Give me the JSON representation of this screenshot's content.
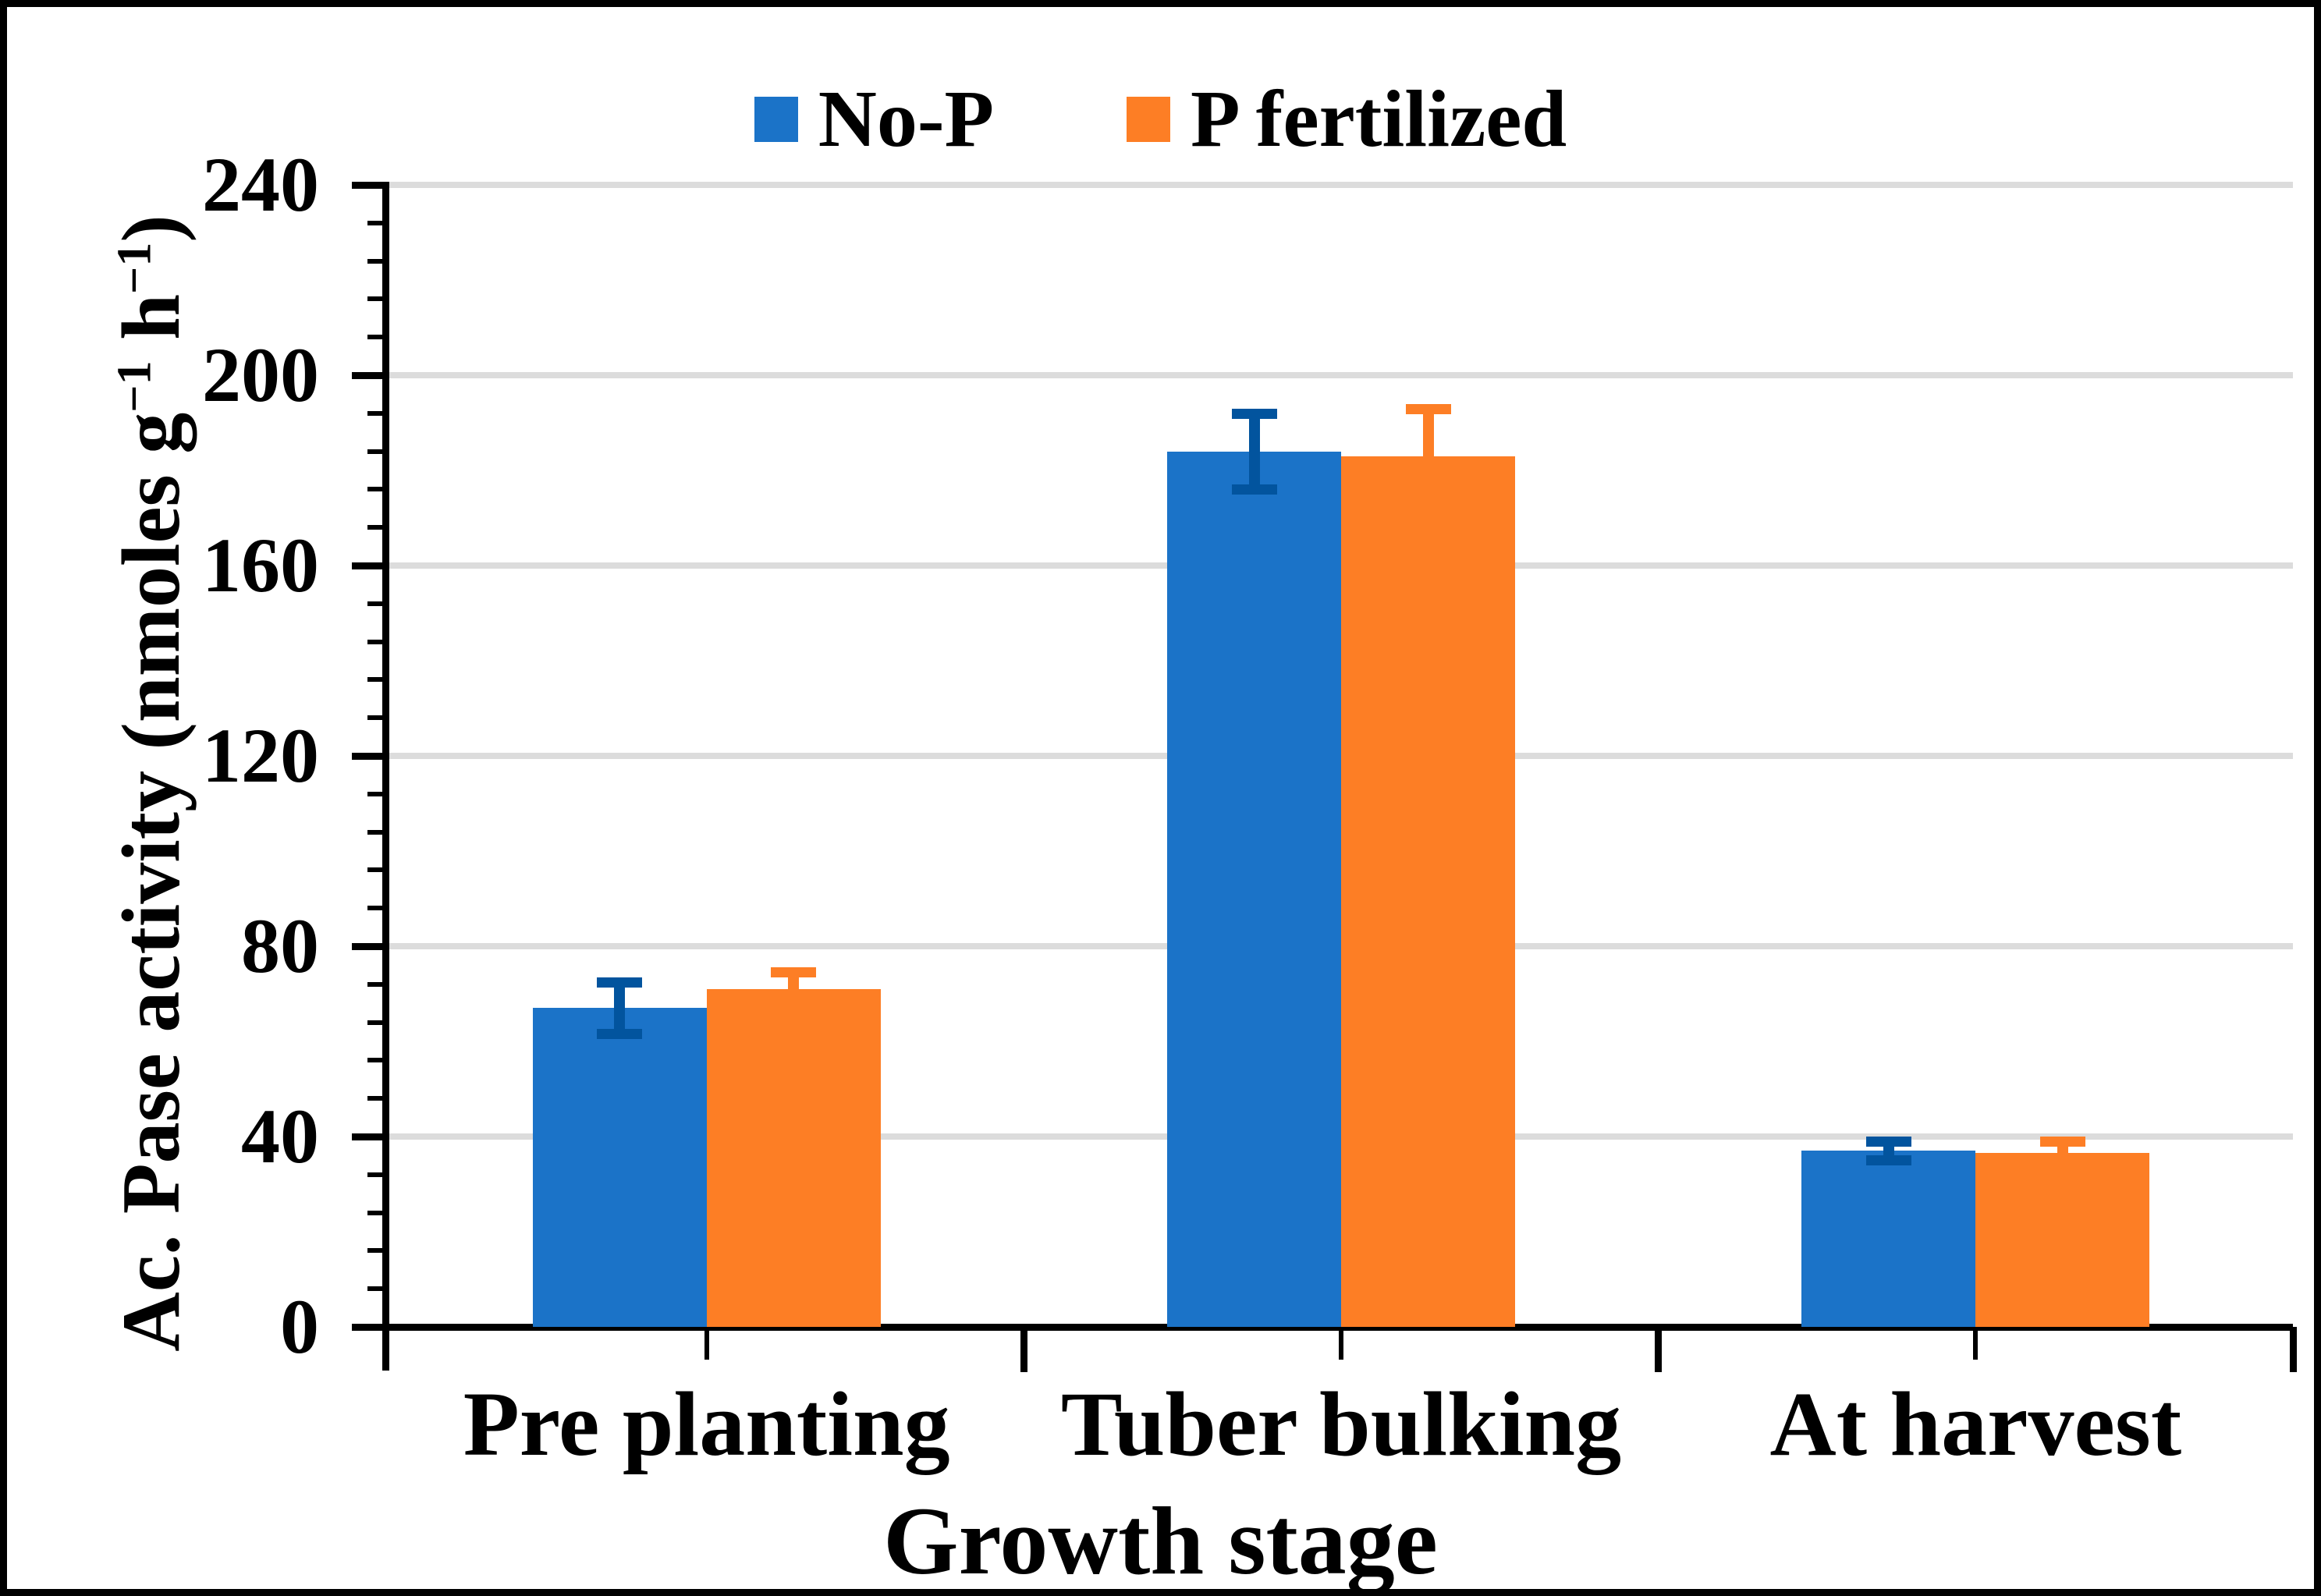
{
  "legend": {
    "items": [
      {
        "label": "No-P",
        "color": "#1B73C8"
      },
      {
        "label": "P fertilized",
        "color": "#FD7E25"
      }
    ]
  },
  "chart_data": {
    "type": "bar",
    "title": "",
    "categories": [
      "Pre planting",
      "Tuber bulking",
      "At harvest"
    ],
    "series": [
      {
        "name": "No-P",
        "color": "#1B73C8",
        "error_color": "#02549E",
        "values": [
          67,
          184,
          37
        ],
        "errors": [
          6.5,
          9,
          3
        ]
      },
      {
        "name": "P fertilized",
        "color": "#FD7E25",
        "error_color": "#FD7E25",
        "values": [
          71,
          183,
          36.5
        ],
        "errors": [
          4.5,
          11,
          3.5
        ]
      }
    ],
    "xlabel": "Growth stage",
    "ylabel": "Ac. Pase activity (nmoles g−1 h−1)",
    "ylabel_parts": [
      "Ac. Pase activity (nmoles g",
      "−1",
      " h",
      "−1",
      ")"
    ],
    "ylim": [
      0,
      240
    ],
    "yticks": [
      0,
      40,
      80,
      120,
      160,
      200,
      240
    ],
    "yticklabels": [
      "0",
      "40",
      "80",
      "120",
      "160",
      "200",
      "240"
    ],
    "ytick_step": 40,
    "yminor_step": 8,
    "grid": true,
    "gridline_color": "#DCDCDC",
    "axis_color": "#000000",
    "background_color": "#FFFFFF",
    "legend_position": "top center",
    "error_bars": "both, caps; lower orange cap hidden behind bar"
  }
}
